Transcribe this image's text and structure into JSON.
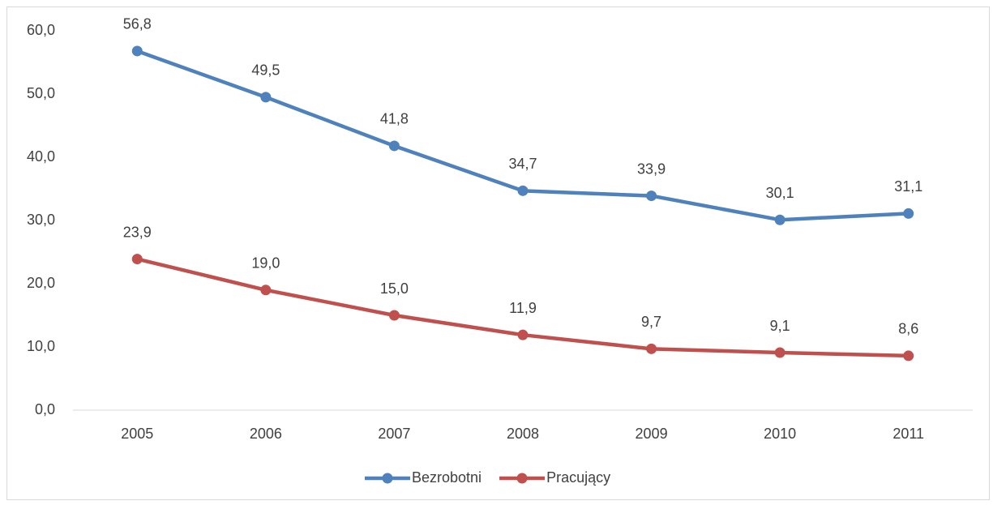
{
  "chart_data": {
    "type": "line",
    "categories": [
      "2005",
      "2006",
      "2007",
      "2008",
      "2009",
      "2010",
      "2011"
    ],
    "series": [
      {
        "name": "Bezrobotni",
        "color": "#4f81bd",
        "values": [
          56.8,
          49.5,
          41.8,
          34.7,
          33.9,
          30.1,
          31.1
        ],
        "value_labels": [
          "56,8",
          "49,5",
          "41,8",
          "34,7",
          "33,9",
          "30,1",
          "31,1"
        ]
      },
      {
        "name": "Pracujący",
        "color": "#c0504d",
        "values": [
          23.9,
          19.0,
          15.0,
          11.9,
          9.7,
          9.1,
          8.6
        ],
        "value_labels": [
          "23,9",
          "19,0",
          "15,0",
          "11,9",
          "9,7",
          "9,1",
          "8,6"
        ]
      }
    ],
    "ylim": [
      0,
      60
    ],
    "yticks": [
      {
        "value": 0,
        "label": "0,0"
      },
      {
        "value": 10,
        "label": "10,0"
      },
      {
        "value": 20,
        "label": "20,0"
      },
      {
        "value": 30,
        "label": "30,0"
      },
      {
        "value": 40,
        "label": "40,0"
      },
      {
        "value": 50,
        "label": "50,0"
      },
      {
        "value": 60,
        "label": "60,0"
      }
    ],
    "grid": false,
    "legend": "bottom"
  }
}
